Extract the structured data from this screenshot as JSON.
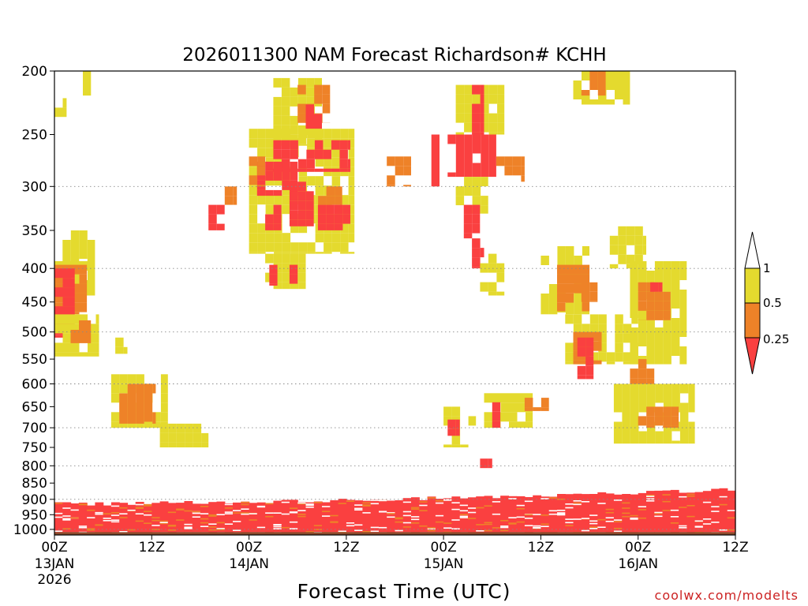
{
  "chart_data": {
    "type": "heatmap",
    "title": "2026011300 NAM Forecast Richardson# KCHH",
    "xlabel": "Forecast Time (UTC)",
    "ylabel": "",
    "credit": "coolwx.com/modelts",
    "x_range_hours": [
      0,
      84
    ],
    "x_ticks": [
      {
        "hour": 0,
        "label": "00Z",
        "sub1": "13JAN",
        "sub2": "2026"
      },
      {
        "hour": 12,
        "label": "12Z",
        "sub1": "",
        "sub2": ""
      },
      {
        "hour": 24,
        "label": "00Z",
        "sub1": "14JAN",
        "sub2": ""
      },
      {
        "hour": 36,
        "label": "12Z",
        "sub1": "",
        "sub2": ""
      },
      {
        "hour": 48,
        "label": "00Z",
        "sub1": "15JAN",
        "sub2": ""
      },
      {
        "hour": 60,
        "label": "12Z",
        "sub1": "",
        "sub2": ""
      },
      {
        "hour": 72,
        "label": "00Z",
        "sub1": "16JAN",
        "sub2": ""
      },
      {
        "hour": 84,
        "label": "12Z",
        "sub1": "",
        "sub2": ""
      }
    ],
    "y_axis": {
      "scale": "log",
      "range": [
        200,
        1020
      ],
      "inverted": true
    },
    "y_ticks": [
      200,
      250,
      300,
      350,
      400,
      450,
      500,
      550,
      600,
      650,
      700,
      750,
      800,
      850,
      900,
      950,
      1000
    ],
    "y_gridlines": [
      300,
      400,
      500,
      600,
      700,
      800,
      900,
      1000
    ],
    "legend": {
      "placement": "right",
      "levels": [
        {
          "label": "1",
          "color": "#ffffff"
        },
        {
          "label": "0.5",
          "color": "#e4da2e"
        },
        {
          "label": "0.25",
          "color": "#ee8228"
        }
      ],
      "below_color": "#fa4040"
    },
    "colors": {
      "low": "#fa4040",
      "mid": "#ee8228",
      "high": "#e4da2e",
      "ground": "#8b4a2b"
    },
    "regions": [
      {
        "cls": "y",
        "hours": [
          0,
          5
        ],
        "p": [
          390,
          440
        ]
      },
      {
        "cls": "y",
        "hours": [
          1,
          5
        ],
        "p": [
          350,
          390
        ]
      },
      {
        "cls": "o",
        "hours": [
          0,
          4
        ],
        "p": [
          395,
          470
        ]
      },
      {
        "cls": "r",
        "hours": [
          0,
          2.5
        ],
        "p": [
          400,
          510
        ]
      },
      {
        "cls": "y",
        "hours": [
          0,
          5.5
        ],
        "p": [
          470,
          545
        ]
      },
      {
        "cls": "o",
        "hours": [
          2,
          4.5
        ],
        "p": [
          480,
          520
        ]
      },
      {
        "cls": "y",
        "hours": [
          0,
          1.5
        ],
        "p": [
          220,
          235
        ]
      },
      {
        "cls": "y",
        "hours": [
          3.5,
          4.5
        ],
        "p": [
          200,
          218
        ]
      },
      {
        "cls": "y",
        "hours": [
          7,
          14
        ],
        "p": [
          580,
          700
        ]
      },
      {
        "cls": "o",
        "hours": [
          8,
          12.5
        ],
        "p": [
          600,
          690
        ]
      },
      {
        "cls": "y",
        "hours": [
          13,
          19
        ],
        "p": [
          690,
          750
        ]
      },
      {
        "cls": "y",
        "hours": [
          7.5,
          9
        ],
        "p": [
          510,
          540
        ]
      },
      {
        "cls": "y",
        "hours": [
          27,
          33
        ],
        "p": [
          205,
          260
        ]
      },
      {
        "cls": "o",
        "hours": [
          30,
          34
        ],
        "p": [
          210,
          240
        ]
      },
      {
        "cls": "r",
        "hours": [
          31,
          33
        ],
        "p": [
          225,
          245
        ]
      },
      {
        "cls": "y",
        "hours": [
          24,
          37
        ],
        "p": [
          245,
          380
        ]
      },
      {
        "cls": "r",
        "hours": [
          27,
          36.5
        ],
        "p": [
          255,
          285
        ]
      },
      {
        "cls": "r",
        "hours": [
          25,
          30
        ],
        "p": [
          275,
          310
        ]
      },
      {
        "cls": "o",
        "hours": [
          24,
          26
        ],
        "p": [
          270,
          300
        ]
      },
      {
        "cls": "r",
        "hours": [
          29,
          32
        ],
        "p": [
          295,
          345
        ]
      },
      {
        "cls": "o",
        "hours": [
          31.5,
          35.5
        ],
        "p": [
          300,
          320
        ]
      },
      {
        "cls": "r",
        "hours": [
          32.5,
          36.5
        ],
        "p": [
          320,
          350
        ]
      },
      {
        "cls": "r",
        "hours": [
          19,
          21
        ],
        "p": [
          320,
          350
        ]
      },
      {
        "cls": "o",
        "hours": [
          21,
          22.5
        ],
        "p": [
          300,
          320
        ]
      },
      {
        "cls": "r",
        "hours": [
          26,
          28
        ],
        "p": [
          320,
          350
        ]
      },
      {
        "cls": "y",
        "hours": [
          26,
          31
        ],
        "p": [
          380,
          430
        ]
      },
      {
        "cls": "r",
        "hours": [
          26.5,
          27.5
        ],
        "p": [
          395,
          425
        ]
      },
      {
        "cls": "r",
        "hours": [
          29,
          30
        ],
        "p": [
          395,
          425
        ]
      },
      {
        "cls": "y",
        "hours": [
          49.5,
          55.5
        ],
        "p": [
          210,
          250
        ]
      },
      {
        "cls": "r",
        "hours": [
          51.5,
          53
        ],
        "p": [
          210,
          250
        ]
      },
      {
        "cls": "r",
        "hours": [
          48.5,
          54.5
        ],
        "p": [
          250,
          290
        ]
      },
      {
        "cls": "o",
        "hours": [
          54.5,
          58
        ],
        "p": [
          270,
          295
        ]
      },
      {
        "cls": "y",
        "hours": [
          49.5,
          53.5
        ],
        "p": [
          290,
          330
        ]
      },
      {
        "cls": "r",
        "hours": [
          50.5,
          52.5
        ],
        "p": [
          320,
          360
        ]
      },
      {
        "cls": "r",
        "hours": [
          51.5,
          53
        ],
        "p": [
          360,
          400
        ]
      },
      {
        "cls": "y",
        "hours": [
          52.5,
          55.5
        ],
        "p": [
          380,
          440
        ]
      },
      {
        "cls": "o",
        "hours": [
          41,
          44
        ],
        "p": [
          270,
          300
        ]
      },
      {
        "cls": "r",
        "hours": [
          46.5,
          47.5
        ],
        "p": [
          250,
          300
        ]
      },
      {
        "cls": "y",
        "hours": [
          60,
          66
        ],
        "p": [
          370,
          470
        ]
      },
      {
        "cls": "o",
        "hours": [
          62,
          66
        ],
        "p": [
          395,
          465
        ]
      },
      {
        "cls": "y",
        "hours": [
          63,
          72
        ],
        "p": [
          470,
          560
        ]
      },
      {
        "cls": "o",
        "hours": [
          64,
          67.5
        ],
        "p": [
          500,
          560
        ]
      },
      {
        "cls": "r",
        "hours": [
          64.5,
          66.5
        ],
        "p": [
          510,
          590
        ]
      },
      {
        "cls": "o",
        "hours": [
          65,
          67
        ],
        "p": [
          420,
          450
        ]
      },
      {
        "cls": "y",
        "hours": [
          68.5,
          73
        ],
        "p": [
          345,
          400
        ]
      },
      {
        "cls": "y",
        "hours": [
          71,
          78
        ],
        "p": [
          390,
          560
        ]
      },
      {
        "cls": "o",
        "hours": [
          72,
          76
        ],
        "p": [
          420,
          480
        ]
      },
      {
        "cls": "r",
        "hours": [
          73.5,
          75
        ],
        "p": [
          420,
          445
        ]
      },
      {
        "cls": "o",
        "hours": [
          71,
          74
        ],
        "p": [
          550,
          600
        ]
      },
      {
        "cls": "y",
        "hours": [
          69,
          79
        ],
        "p": [
          600,
          740
        ]
      },
      {
        "cls": "o",
        "hours": [
          72,
          77
        ],
        "p": [
          650,
          700
        ]
      },
      {
        "cls": "r",
        "hours": [
          75,
          77
        ],
        "p": [
          630,
          660
        ]
      },
      {
        "cls": "y",
        "hours": [
          64,
          71
        ],
        "p": [
          200,
          225
        ]
      },
      {
        "cls": "o",
        "hours": [
          65,
          68
        ],
        "p": [
          200,
          218
        ]
      },
      {
        "cls": "y",
        "hours": [
          53,
          59
        ],
        "p": [
          620,
          700
        ]
      },
      {
        "cls": "r",
        "hours": [
          54,
          55
        ],
        "p": [
          640,
          700
        ]
      },
      {
        "cls": "o",
        "hours": [
          58,
          61
        ],
        "p": [
          630,
          660
        ]
      },
      {
        "cls": "y",
        "hours": [
          48,
          52
        ],
        "p": [
          650,
          750
        ]
      },
      {
        "cls": "r",
        "hours": [
          48.5,
          50
        ],
        "p": [
          680,
          720
        ]
      },
      {
        "cls": "r",
        "hours": [
          52.5,
          54
        ],
        "p": [
          780,
          830
        ]
      }
    ],
    "low_layer": {
      "from_hour": 0,
      "to_hour": 84,
      "p_surface": 1010,
      "p_top_start": 915,
      "p_top_end": 870
    }
  }
}
